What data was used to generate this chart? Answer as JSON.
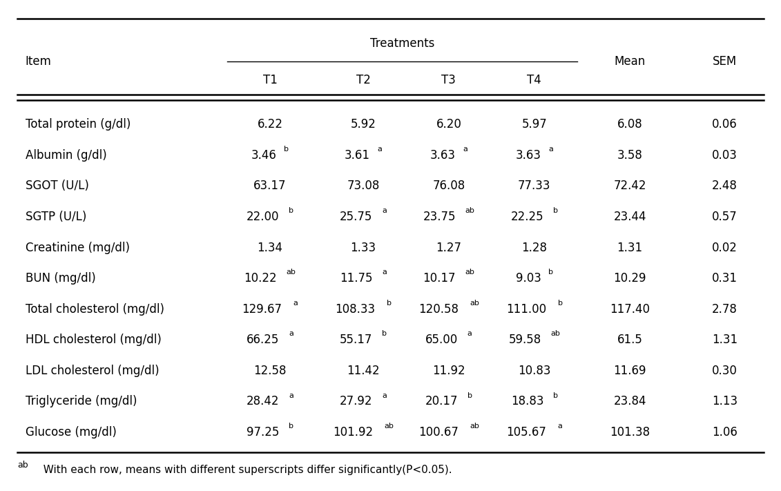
{
  "title": "Treatments",
  "footnote_prefix": "ab",
  "footnote_text": "  With each row, means with different superscripts differ significantly(P<0.05).",
  "col_headers": [
    "T1",
    "T2",
    "T3",
    "T4"
  ],
  "rows": [
    {
      "item": "Total protein (g/dl)",
      "T1": [
        "6.22",
        ""
      ],
      "T2": [
        "5.92",
        ""
      ],
      "T3": [
        "6.20",
        ""
      ],
      "T4": [
        "5.97",
        ""
      ],
      "Mean": "6.08",
      "SEM": "0.06"
    },
    {
      "item": "Albumin (g/dl)",
      "T1": [
        "3.46",
        "b"
      ],
      "T2": [
        "3.61",
        "a"
      ],
      "T3": [
        "3.63",
        "a"
      ],
      "T4": [
        "3.63",
        "a"
      ],
      "Mean": "3.58",
      "SEM": "0.03"
    },
    {
      "item": "SGOT (U/L)",
      "T1": [
        "63.17",
        ""
      ],
      "T2": [
        "73.08",
        ""
      ],
      "T3": [
        "76.08",
        ""
      ],
      "T4": [
        "77.33",
        ""
      ],
      "Mean": "72.42",
      "SEM": "2.48"
    },
    {
      "item": "SGTP (U/L)",
      "T1": [
        "22.00",
        "b"
      ],
      "T2": [
        "25.75",
        "a"
      ],
      "T3": [
        "23.75",
        "ab"
      ],
      "T4": [
        "22.25",
        "b"
      ],
      "Mean": "23.44",
      "SEM": "0.57"
    },
    {
      "item": "Creatinine (mg/dl)",
      "T1": [
        "1.34",
        ""
      ],
      "T2": [
        "1.33",
        ""
      ],
      "T3": [
        "1.27",
        ""
      ],
      "T4": [
        "1.28",
        ""
      ],
      "Mean": "1.31",
      "SEM": "0.02"
    },
    {
      "item": "BUN (mg/dl)",
      "T1": [
        "10.22",
        "ab"
      ],
      "T2": [
        "11.75",
        "a"
      ],
      "T3": [
        "10.17",
        "ab"
      ],
      "T4": [
        "9.03",
        "b"
      ],
      "Mean": "10.29",
      "SEM": "0.31"
    },
    {
      "item": "Total cholesterol (mg/dl)",
      "T1": [
        "129.67",
        "a"
      ],
      "T2": [
        "108.33",
        "b"
      ],
      "T3": [
        "120.58",
        "ab"
      ],
      "T4": [
        "111.00",
        "b"
      ],
      "Mean": "117.40",
      "SEM": "2.78"
    },
    {
      "item": "HDL cholesterol (mg/dl)",
      "T1": [
        "66.25",
        "a"
      ],
      "T2": [
        "55.17",
        "b"
      ],
      "T3": [
        "65.00",
        "a"
      ],
      "T4": [
        "59.58",
        "ab"
      ],
      "Mean": "61.5",
      "SEM": "1.31"
    },
    {
      "item": "LDL cholesterol (mg/dl)",
      "T1": [
        "12.58",
        ""
      ],
      "T2": [
        "11.42",
        ""
      ],
      "T3": [
        "11.92",
        ""
      ],
      "T4": [
        "10.83",
        ""
      ],
      "Mean": "11.69",
      "SEM": "0.30"
    },
    {
      "item": "Triglyceride (mg/dl)",
      "T1": [
        "28.42",
        "a"
      ],
      "T2": [
        "27.92",
        "a"
      ],
      "T3": [
        "20.17",
        "b"
      ],
      "T4": [
        "18.83",
        "b"
      ],
      "Mean": "23.84",
      "SEM": "1.13"
    },
    {
      "item": "Glucose (mg/dl)",
      "T1": [
        "97.25",
        "b"
      ],
      "T2": [
        "101.92",
        "ab"
      ],
      "T3": [
        "100.67",
        "ab"
      ],
      "T4": [
        "105.67",
        "a"
      ],
      "Mean": "101.38",
      "SEM": "1.06"
    }
  ],
  "bg_color": "white",
  "text_color": "black",
  "font_size": 12,
  "sup_font_size": 8,
  "footnote_font_size": 11
}
